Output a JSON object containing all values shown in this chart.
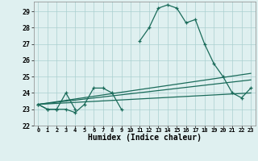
{
  "xlabel": "Humidex (Indice chaleur)",
  "x": [
    0,
    1,
    2,
    3,
    4,
    5,
    6,
    7,
    8,
    9,
    10,
    11,
    12,
    13,
    14,
    15,
    16,
    17,
    18,
    19,
    20,
    21,
    22,
    23
  ],
  "line1": [
    23.3,
    23.0,
    23.0,
    23.0,
    22.8,
    23.3,
    24.3,
    24.3,
    24.0,
    23.0,
    null,
    27.2,
    28.0,
    29.2,
    29.4,
    29.2,
    28.3,
    28.5,
    27.0,
    25.8,
    25.0,
    24.0,
    23.7,
    24.3
  ],
  "line2_x": [
    0,
    1,
    2,
    3,
    4
  ],
  "line2_y": [
    23.3,
    23.0,
    23.0,
    24.0,
    23.0
  ],
  "line3_x": [
    0,
    23
  ],
  "line3_y": [
    23.3,
    24.0
  ],
  "line4_x": [
    0,
    23
  ],
  "line4_y": [
    23.3,
    24.8
  ],
  "line5_x": [
    0,
    23
  ],
  "line5_y": [
    23.3,
    25.2
  ],
  "ylim": [
    22,
    29.6
  ],
  "xlim": [
    -0.5,
    23.5
  ],
  "yticks": [
    22,
    23,
    24,
    25,
    26,
    27,
    28,
    29
  ],
  "xticks": [
    0,
    1,
    2,
    3,
    4,
    5,
    6,
    7,
    8,
    9,
    10,
    11,
    12,
    13,
    14,
    15,
    16,
    17,
    18,
    19,
    20,
    21,
    22,
    23
  ],
  "bg_color": "#dff0f0",
  "line_color": "#1a6b5a",
  "grid_color": "#aacfcf"
}
